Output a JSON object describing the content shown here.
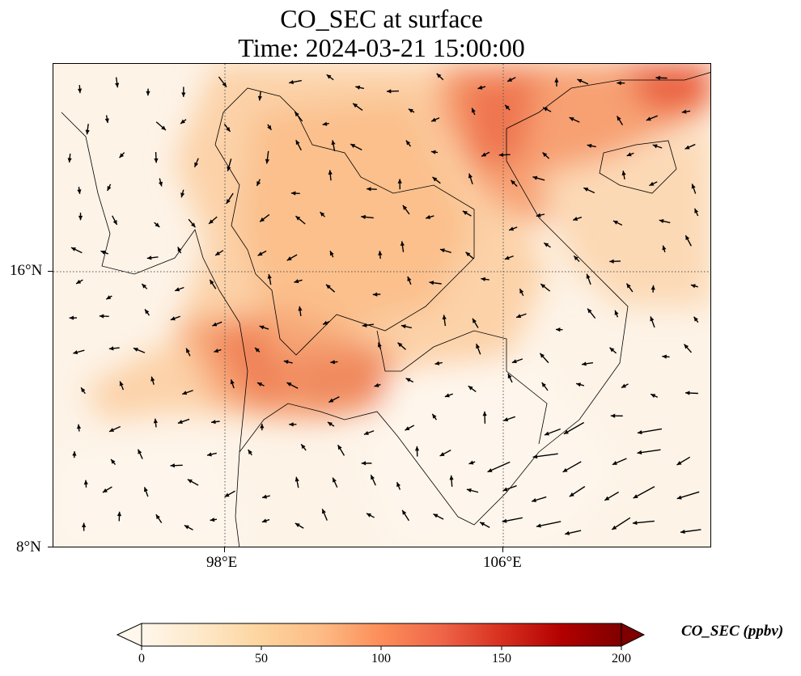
{
  "title": {
    "line1": "CO_SEC at surface",
    "line2": "Time: 2024-03-21 15:00:00"
  },
  "map": {
    "lat_ticks": [
      "16°N",
      "8°N"
    ],
    "lon_ticks": [
      "98°E",
      "106°E"
    ],
    "gridlines": "dotted"
  },
  "colorbar": {
    "label": "CO_SEC (ppbv)",
    "ticks": [
      "0",
      "50",
      "100",
      "150",
      "200"
    ],
    "range": [
      0,
      200
    ],
    "colormap": "OrRd",
    "extend": "both",
    "colors": [
      "#fff7ec",
      "#fee8c8",
      "#fdd49e",
      "#fdbb84",
      "#fc8d59",
      "#ef6548",
      "#d7301f",
      "#b30000",
      "#7f0000"
    ]
  }
}
